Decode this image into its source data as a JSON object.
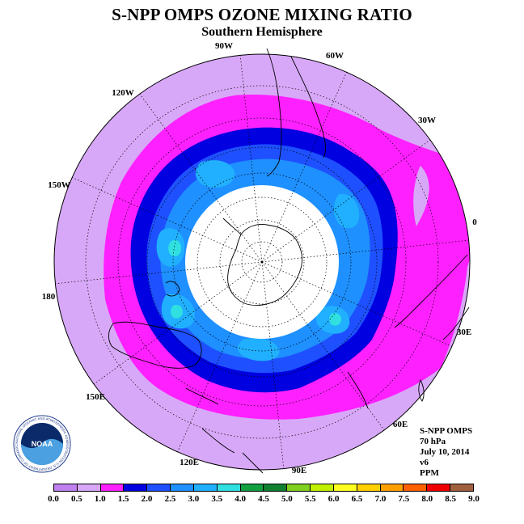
{
  "header": {
    "title": "S-NPP OMPS OZONE MIXING RATIO",
    "subtitle": "Southern Hemisphere"
  },
  "map": {
    "projection": "polar stereographic, south pole centered",
    "no_data_cap_color": "#ffffff",
    "longitude_labels": [
      "90W",
      "60W",
      "30W",
      "0",
      "30E",
      "60E",
      "90E",
      "120E",
      "150E",
      "180",
      "150W",
      "120W"
    ]
  },
  "info": {
    "instrument": "S-NPP OMPS",
    "level": "70 hPa",
    "date": "July 10, 2014",
    "version": "v6",
    "units": "PPM"
  },
  "colorbar": {
    "ticks": [
      "0.0",
      "0.5",
      "1.0",
      "1.5",
      "2.0",
      "2.5",
      "3.0",
      "3.5",
      "4.0",
      "4.5",
      "5.0",
      "5.5",
      "6.0",
      "6.5",
      "7.0",
      "7.5",
      "8.0",
      "8.5",
      "9.0"
    ],
    "colors": [
      "#c080f0",
      "#d8a8f8",
      "#ff20ff",
      "#0000e0",
      "#1e50ff",
      "#1e90ff",
      "#20b0ff",
      "#30e0e0",
      "#10a040",
      "#108030",
      "#80d020",
      "#c0f000",
      "#ffff20",
      "#ffd000",
      "#ffa000",
      "#ff6000",
      "#f00000",
      "#a06040"
    ]
  },
  "logo": {
    "text": "NOAA",
    "ring_text": "NATIONAL OCEANIC AND ATMOSPHERIC ADMINISTRATION U.S. DEPARTMENT OF COMMERCE"
  }
}
